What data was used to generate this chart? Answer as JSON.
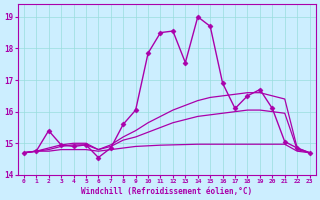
{
  "xlabel": "Windchill (Refroidissement éolien,°C)",
  "bg_color": "#cceeff",
  "grid_color": "#99dddd",
  "line_color": "#aa00aa",
  "xlim": [
    -0.5,
    23.5
  ],
  "ylim": [
    14.0,
    19.4
  ],
  "yticks": [
    14,
    15,
    16,
    17,
    18,
    19
  ],
  "xticks": [
    0,
    1,
    2,
    3,
    4,
    5,
    6,
    7,
    8,
    9,
    10,
    11,
    12,
    13,
    14,
    15,
    16,
    17,
    18,
    19,
    20,
    21,
    22,
    23
  ],
  "lines": [
    {
      "x": [
        0,
        1,
        2,
        3,
        4,
        5,
        6,
        7,
        8,
        9,
        10,
        11,
        12,
        13,
        14,
        15,
        16,
        17,
        18,
        19,
        20,
        21,
        22,
        23
      ],
      "y": [
        14.7,
        14.75,
        14.75,
        14.8,
        14.8,
        14.8,
        14.75,
        14.8,
        14.85,
        14.9,
        14.92,
        14.94,
        14.95,
        14.96,
        14.97,
        14.97,
        14.97,
        14.97,
        14.97,
        14.97,
        14.97,
        14.97,
        14.75,
        14.7
      ],
      "marker": false,
      "lw": 0.9
    },
    {
      "x": [
        0,
        1,
        2,
        3,
        4,
        5,
        6,
        7,
        8,
        9,
        10,
        11,
        12,
        13,
        14,
        15,
        16,
        17,
        18,
        19,
        20,
        21,
        22,
        23
      ],
      "y": [
        14.7,
        14.75,
        14.8,
        14.9,
        14.95,
        14.95,
        14.8,
        14.9,
        15.1,
        15.2,
        15.35,
        15.5,
        15.65,
        15.75,
        15.85,
        15.9,
        15.95,
        16.0,
        16.05,
        16.05,
        16.0,
        15.95,
        14.8,
        14.7
      ],
      "marker": false,
      "lw": 0.9
    },
    {
      "x": [
        0,
        1,
        2,
        3,
        4,
        5,
        6,
        7,
        8,
        9,
        10,
        11,
        12,
        13,
        14,
        15,
        16,
        17,
        18,
        19,
        20,
        21,
        22,
        23
      ],
      "y": [
        14.7,
        14.75,
        14.85,
        14.95,
        15.0,
        15.0,
        14.8,
        14.95,
        15.2,
        15.4,
        15.65,
        15.85,
        16.05,
        16.2,
        16.35,
        16.45,
        16.5,
        16.55,
        16.6,
        16.6,
        16.5,
        16.4,
        14.85,
        14.7
      ],
      "marker": false,
      "lw": 0.9
    },
    {
      "x": [
        0,
        1,
        2,
        3,
        4,
        5,
        6,
        7,
        8,
        9,
        10,
        11,
        12,
        13,
        14,
        15,
        16,
        17,
        18,
        19,
        20,
        21,
        22,
        23
      ],
      "y": [
        14.7,
        14.75,
        15.4,
        14.95,
        14.9,
        14.95,
        14.55,
        14.85,
        15.6,
        16.05,
        17.85,
        18.5,
        18.55,
        17.55,
        19.0,
        18.7,
        16.9,
        16.1,
        16.5,
        16.7,
        16.1,
        15.05,
        14.85,
        14.7
      ],
      "marker": true,
      "lw": 1.0
    }
  ]
}
